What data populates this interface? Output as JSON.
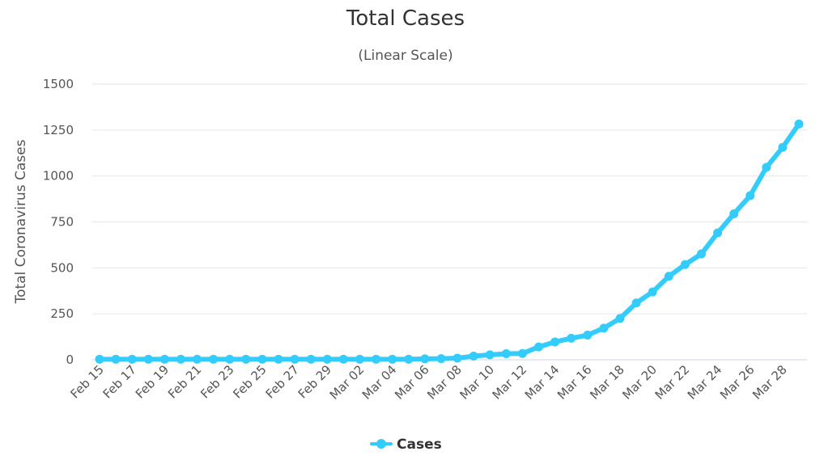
{
  "chart_data": {
    "type": "line",
    "title": "Total Cases",
    "subtitle": "(Linear Scale)",
    "ylabel": "Total Coronavirus Cases",
    "xlabel": "",
    "ylim": [
      0,
      1500
    ],
    "yticks": [
      0,
      250,
      500,
      750,
      1000,
      1250,
      1500
    ],
    "grid": true,
    "legend_position": "bottom-center",
    "categories": [
      "Feb 15",
      "Feb 16",
      "Feb 17",
      "Feb 18",
      "Feb 19",
      "Feb 20",
      "Feb 21",
      "Feb 22",
      "Feb 23",
      "Feb 24",
      "Feb 25",
      "Feb 26",
      "Feb 27",
      "Feb 28",
      "Feb 29",
      "Mar 01",
      "Mar 02",
      "Mar 03",
      "Mar 04",
      "Mar 05",
      "Mar 06",
      "Mar 07",
      "Mar 08",
      "Mar 09",
      "Mar 10",
      "Mar 11",
      "Mar 12",
      "Mar 13",
      "Mar 14",
      "Mar 15",
      "Mar 16",
      "Mar 17",
      "Mar 18",
      "Mar 19",
      "Mar 20",
      "Mar 21",
      "Mar 22",
      "Mar 23",
      "Mar 24",
      "Mar 25",
      "Mar 26",
      "Mar 27",
      "Mar 28",
      "Mar 29"
    ],
    "x_tick_labels": [
      "Feb 15",
      "Feb 17",
      "Feb 19",
      "Feb 21",
      "Feb 23",
      "Feb 25",
      "Feb 27",
      "Feb 29",
      "Mar 02",
      "Mar 04",
      "Mar 06",
      "Mar 08",
      "Mar 10",
      "Mar 12",
      "Mar 14",
      "Mar 16",
      "Mar 18",
      "Mar 20",
      "Mar 22",
      "Mar 24",
      "Mar 26",
      "Mar 28"
    ],
    "series": [
      {
        "name": "Cases",
        "color": "#33ccff",
        "values": [
          3,
          3,
          3,
          3,
          3,
          3,
          3,
          3,
          3,
          3,
          3,
          3,
          3,
          3,
          3,
          3,
          3,
          3,
          3,
          3,
          5,
          6,
          9,
          20,
          27,
          33,
          34,
          70,
          97,
          117,
          134,
          172,
          225,
          309,
          369,
          454,
          518,
          576,
          690,
          794,
          893,
          1047,
          1156,
          1283
        ]
      }
    ]
  }
}
